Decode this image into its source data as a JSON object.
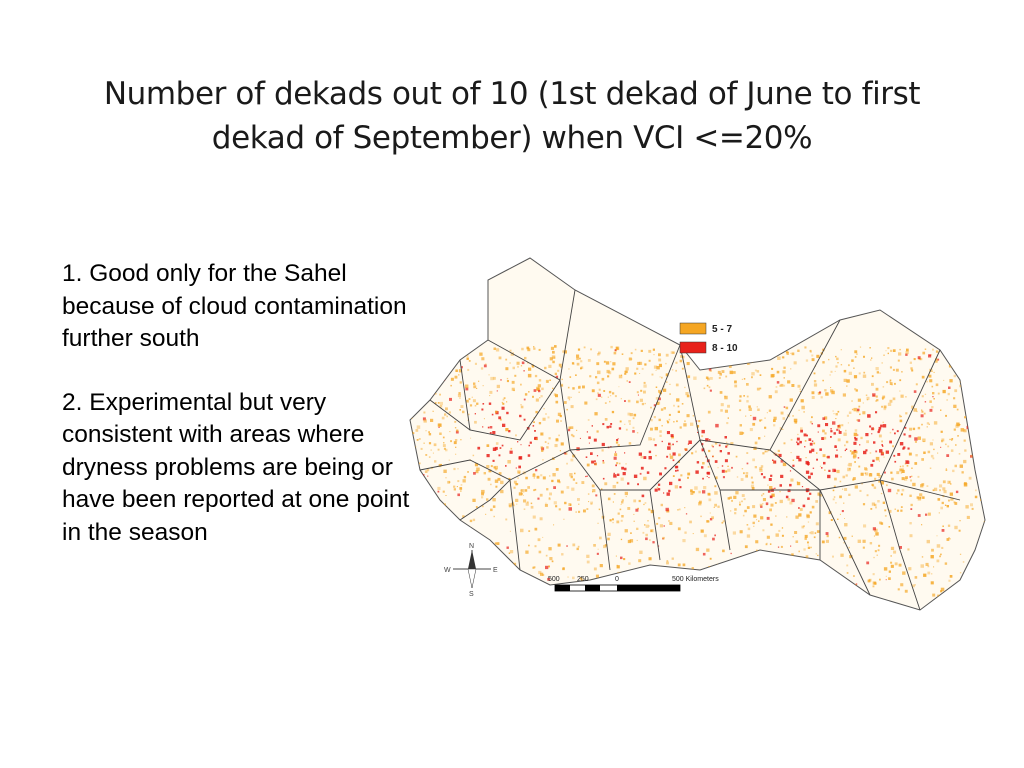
{
  "slide": {
    "title_line1": "Number of dekads out of 10 (1st dekad of June to first",
    "title_line2": "dekad of September) when VCI <=20%",
    "bullet1": "1. Good only for the Sahel because of cloud contamination  further south",
    "bullet2": "2.  Experimental but very consistent with areas where dryness problems are being or have been reported at one point in the season"
  },
  "map": {
    "legend": [
      {
        "label": "5 - 7",
        "color": "#f5a623"
      },
      {
        "label": "8 - 10",
        "color": "#e8211b"
      }
    ],
    "scale": {
      "labels": [
        "500",
        "250",
        "0",
        "500 Kilometers"
      ]
    },
    "compass": {
      "n": "N",
      "s": "S",
      "e": "E",
      "w": "W"
    }
  }
}
